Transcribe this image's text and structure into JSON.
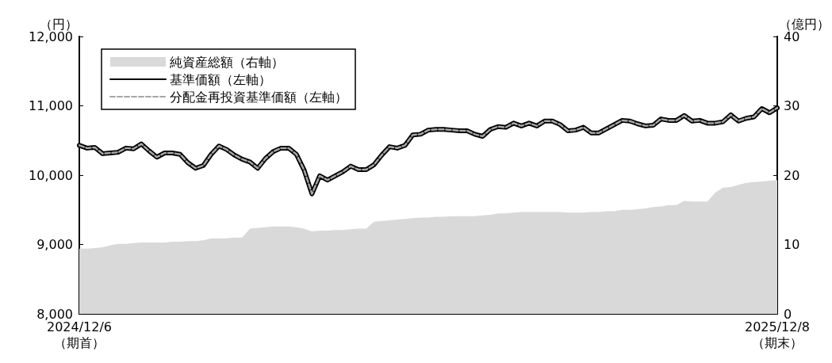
{
  "chart_data": {
    "type": "line",
    "ylabel": "（円）",
    "y2label": "（億円）",
    "categories": [
      "2024/12/6\n（期首）",
      null,
      null,
      null,
      null,
      null,
      null,
      null,
      null,
      null,
      null,
      null,
      null,
      null,
      null,
      null,
      null,
      null,
      null,
      null,
      null,
      null,
      null,
      null,
      null,
      null,
      null,
      null,
      null,
      null,
      null,
      null,
      null,
      null,
      null,
      null,
      null,
      null,
      null,
      null,
      null,
      null,
      null,
      null,
      null,
      null,
      null,
      null,
      null,
      null,
      null,
      null,
      null,
      null,
      null,
      null,
      null,
      null,
      null,
      null,
      null,
      null,
      null,
      null,
      null,
      null,
      null,
      null,
      null,
      null,
      null,
      null,
      null,
      null,
      null,
      null,
      null,
      null,
      null,
      null,
      null,
      null,
      null,
      null,
      null,
      null,
      null,
      null,
      null,
      null,
      "2025/12/8\n（期末）"
    ],
    "series": [
      {
        "name": "純資産総額（右軸）",
        "type": "area",
        "axis": "y2",
        "color": "#d9d9d9",
        "values": [
          9.4,
          9.4,
          9.5,
          9.6,
          9.9,
          10.1,
          10.1,
          10.2,
          10.3,
          10.3,
          10.3,
          10.3,
          10.4,
          10.4,
          10.5,
          10.5,
          10.6,
          10.9,
          10.9,
          10.9,
          11.0,
          11.0,
          12.3,
          12.4,
          12.5,
          12.6,
          12.6,
          12.6,
          12.5,
          12.3,
          11.9,
          12.0,
          12.0,
          12.1,
          12.1,
          12.2,
          12.3,
          12.3,
          13.3,
          13.4,
          13.5,
          13.6,
          13.7,
          13.8,
          13.9,
          13.9,
          14.0,
          14.0,
          14.1,
          14.1,
          14.1,
          14.1,
          14.2,
          14.3,
          14.5,
          14.5,
          14.6,
          14.7,
          14.7,
          14.7,
          14.7,
          14.7,
          14.7,
          14.6,
          14.6,
          14.6,
          14.7,
          14.7,
          14.8,
          14.8,
          15.0,
          15.0,
          15.1,
          15.2,
          15.4,
          15.5,
          15.7,
          15.7,
          16.3,
          16.2,
          16.2,
          16.2,
          17.5,
          18.2,
          18.3,
          18.6,
          18.9,
          19.0,
          19.1,
          19.2,
          19.3
        ]
      },
      {
        "name": "基準価額（左軸）",
        "color": "#000000",
        "line_style": "solid",
        "values": [
          10430,
          10390,
          10400,
          10310,
          10320,
          10330,
          10390,
          10380,
          10450,
          10350,
          10260,
          10320,
          10320,
          10300,
          10180,
          10100,
          10140,
          10300,
          10420,
          10370,
          10290,
          10230,
          10190,
          10100,
          10240,
          10340,
          10390,
          10390,
          10300,
          10070,
          9730,
          9990,
          9930,
          9990,
          10050,
          10130,
          10080,
          10080,
          10150,
          10290,
          10410,
          10390,
          10430,
          10580,
          10590,
          10650,
          10660,
          10660,
          10650,
          10640,
          10640,
          10590,
          10560,
          10660,
          10700,
          10690,
          10750,
          10710,
          10750,
          10710,
          10780,
          10780,
          10730,
          10640,
          10650,
          10690,
          10610,
          10610,
          10670,
          10730,
          10790,
          10780,
          10740,
          10710,
          10720,
          10810,
          10790,
          10790,
          10860,
          10780,
          10790,
          10750,
          10750,
          10770,
          10870,
          10780,
          10820,
          10840,
          10960,
          10900,
          10970
        ]
      },
      {
        "name": "分配金再投資基準価額（左軸）",
        "color": "#a6a6a6",
        "line_style": "dashed",
        "values": [
          10430,
          10390,
          10400,
          10310,
          10320,
          10330,
          10390,
          10380,
          10450,
          10350,
          10260,
          10320,
          10320,
          10300,
          10180,
          10100,
          10140,
          10300,
          10420,
          10370,
          10290,
          10230,
          10190,
          10100,
          10240,
          10340,
          10390,
          10390,
          10300,
          10070,
          9730,
          9990,
          9930,
          9990,
          10050,
          10130,
          10080,
          10080,
          10150,
          10290,
          10410,
          10390,
          10430,
          10580,
          10590,
          10650,
          10660,
          10660,
          10650,
          10640,
          10640,
          10590,
          10560,
          10660,
          10700,
          10690,
          10750,
          10710,
          10750,
          10710,
          10780,
          10780,
          10730,
          10640,
          10650,
          10690,
          10610,
          10610,
          10670,
          10730,
          10790,
          10780,
          10740,
          10710,
          10720,
          10810,
          10790,
          10790,
          10860,
          10780,
          10790,
          10750,
          10750,
          10770,
          10870,
          10780,
          10820,
          10840,
          10960,
          10900,
          10970
        ]
      }
    ],
    "ylim": [
      8000,
      12000
    ],
    "yticks": [
      {
        "value": 8000,
        "label": "8,000"
      },
      {
        "value": 9000,
        "label": "9,000"
      },
      {
        "value": 10000,
        "label": "10,000"
      },
      {
        "value": 11000,
        "label": "11,000"
      },
      {
        "value": 12000,
        "label": "12,000"
      }
    ],
    "y2lim": [
      0,
      40
    ],
    "y2ticks": [
      0,
      10,
      20,
      30,
      40
    ],
    "grid": false,
    "legend": "top left",
    "marker": "none"
  }
}
